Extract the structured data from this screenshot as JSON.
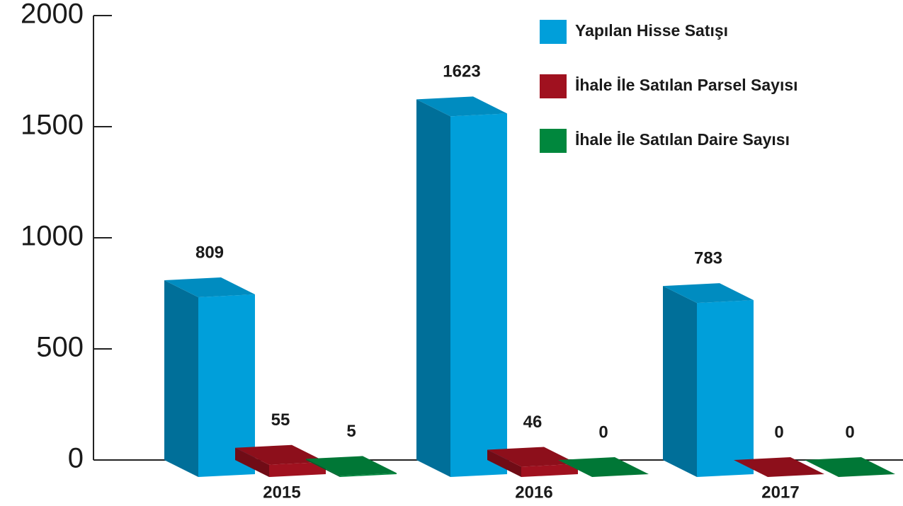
{
  "chart_data": {
    "type": "bar3d",
    "categories": [
      "2015",
      "2016",
      "2017"
    ],
    "series": [
      {
        "name": "Yapılan Hisse Satışı",
        "color": "#009fda",
        "values": [
          809,
          1623,
          783
        ]
      },
      {
        "name": "İhale İle Satılan Parsel Sayısı",
        "color": "#a0111f",
        "values": [
          55,
          46,
          0
        ]
      },
      {
        "name": "İhale İle Satılan Daire Sayısı",
        "color": "#00873d",
        "values": [
          5,
          0,
          0
        ]
      }
    ],
    "ylim": [
      0,
      2000
    ],
    "yticks": [
      0,
      500,
      1000,
      1500,
      2000
    ],
    "legend": "upper right"
  }
}
